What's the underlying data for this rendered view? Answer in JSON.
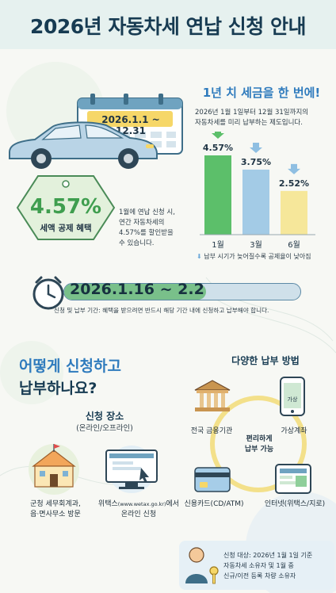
{
  "title": "2026년 자동차세 연납 신청 안내",
  "calendar_range": "2026.1.1 ~ 12.31",
  "tag": {
    "rate": "4.57%",
    "label": "세액 공제 혜택"
  },
  "tag_desc": [
    "1월에 연납 신청 시,",
    "연간 자동차세의",
    "4.57%를 할인받을",
    "수 있습니다."
  ],
  "chart_section": {
    "heading": "1년 치 세금을 한 번에!",
    "desc": [
      "2026년 1월 1일부터 12월 31일까지의",
      "자동차세를 미리 납부하는 제도입니다."
    ],
    "note": "납부 시기가 늦어질수록 공제율이 낮아짐"
  },
  "chart_data": {
    "type": "bar",
    "categories": [
      "1월",
      "3월",
      "6월"
    ],
    "values": [
      4.57,
      3.75,
      2.52
    ],
    "data_labels": [
      "4.57%",
      "3.75%",
      "2.52%"
    ],
    "colors": [
      "#5cbf6a",
      "#a3cbe6",
      "#f6e79a"
    ]
  },
  "period": {
    "dates": "2026.1.16 ~ 2.2",
    "note": "신청 및 납부 기간: 혜택을 받으려면 반드시 해당 기간 내에 신청하고 납부해야 합니다."
  },
  "howto": {
    "line1": "어떻게 신청하고",
    "line2": "납부하나요?"
  },
  "place": {
    "title": "신청 장소",
    "subtitle": "(온라인/오프라인)",
    "offline": [
      "군청 세무회계과,",
      "읍·면사무소 방문"
    ],
    "online_prefix": "위택스",
    "online_url": "(www.wetax.go.kr)",
    "online_suffix": "에서",
    "online_line2": "온라인 신청"
  },
  "methods": {
    "title": "다양한 납부 방법",
    "center": [
      "편리하게",
      "납부 가능"
    ],
    "bank": "전국 금융기관",
    "virtual": "가상계좌",
    "virtual_screen": "가상",
    "card": "신용카드(CD/ATM)",
    "internet": "인터넷(위택스/지로)"
  },
  "target": [
    "신청 대상: 2026년 1월 1일 기준",
    "자동차세 소유자 및 1월 중",
    "신규/이전 등록 차량 소유자"
  ]
}
